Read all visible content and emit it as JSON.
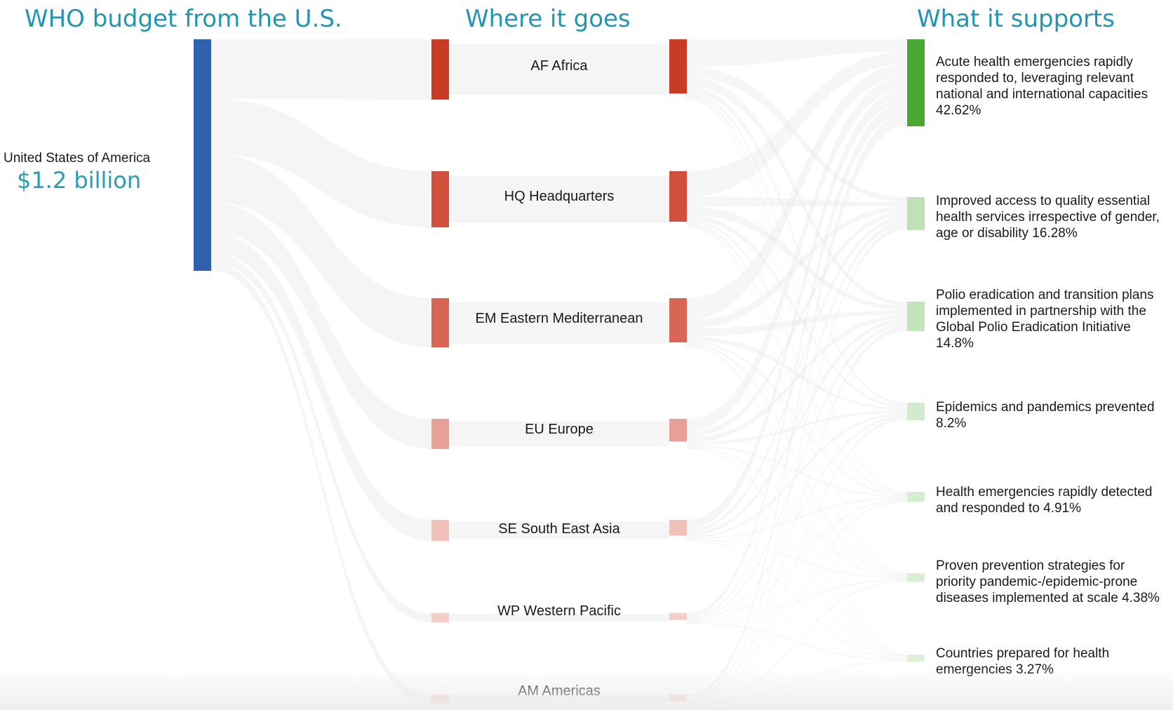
{
  "headings": {
    "source": "WHO budget from the U.S.",
    "middle": "Where it goes",
    "target": "What it supports"
  },
  "source": {
    "label": "United States of America",
    "amount": "$1.2 billion",
    "color": "#3061ad"
  },
  "regions": [
    {
      "label": "AF Africa",
      "color": "#c93b25"
    },
    {
      "label": "HQ Headquarters",
      "color": "#d24f3c"
    },
    {
      "label": "EM Eastern Mediterranean",
      "color": "#d96554"
    },
    {
      "label": "EU Europe",
      "color": "#e6a095"
    },
    {
      "label": "SE South East Asia",
      "color": "#f0c1b9"
    },
    {
      "label": "WP Western Pacific",
      "color": "#f4cfc9"
    },
    {
      "label": "AM Americas",
      "color": "#f4d0ca"
    }
  ],
  "outcomes": [
    {
      "label": [
        "Acute health emergencies rapidly",
        "responded to, leveraging relevant",
        "national and international capacities",
        "42.62%"
      ],
      "color": "#4aa832"
    },
    {
      "label": [
        "Improved access to quality essential",
        "health services irrespective of gender,",
        "age or disability 16.28%"
      ],
      "color": "#bfe2b5"
    },
    {
      "label": [
        "Polio eradication and transition plans",
        "implemented in partnership with the",
        "Global Polio Eradication Initiative",
        "14.8%"
      ],
      "color": "#c3e4ba"
    },
    {
      "label": [
        "Epidemics and pandemics prevented",
        "8.2%"
      ],
      "color": "#d3ebcc"
    },
    {
      "label": [
        "Health emergencies rapidly detected",
        "and responded to 4.91%"
      ],
      "color": "#d6eed0"
    },
    {
      "label": [
        "Proven prevention strategies for",
        "priority pandemic-/epidemic-prone",
        "diseases implemented at scale 4.38%"
      ],
      "color": "#d9efd3"
    },
    {
      "label": [
        "Countries prepared for health",
        "emergencies 3.27%"
      ],
      "color": "#dcf0d6"
    }
  ]
}
